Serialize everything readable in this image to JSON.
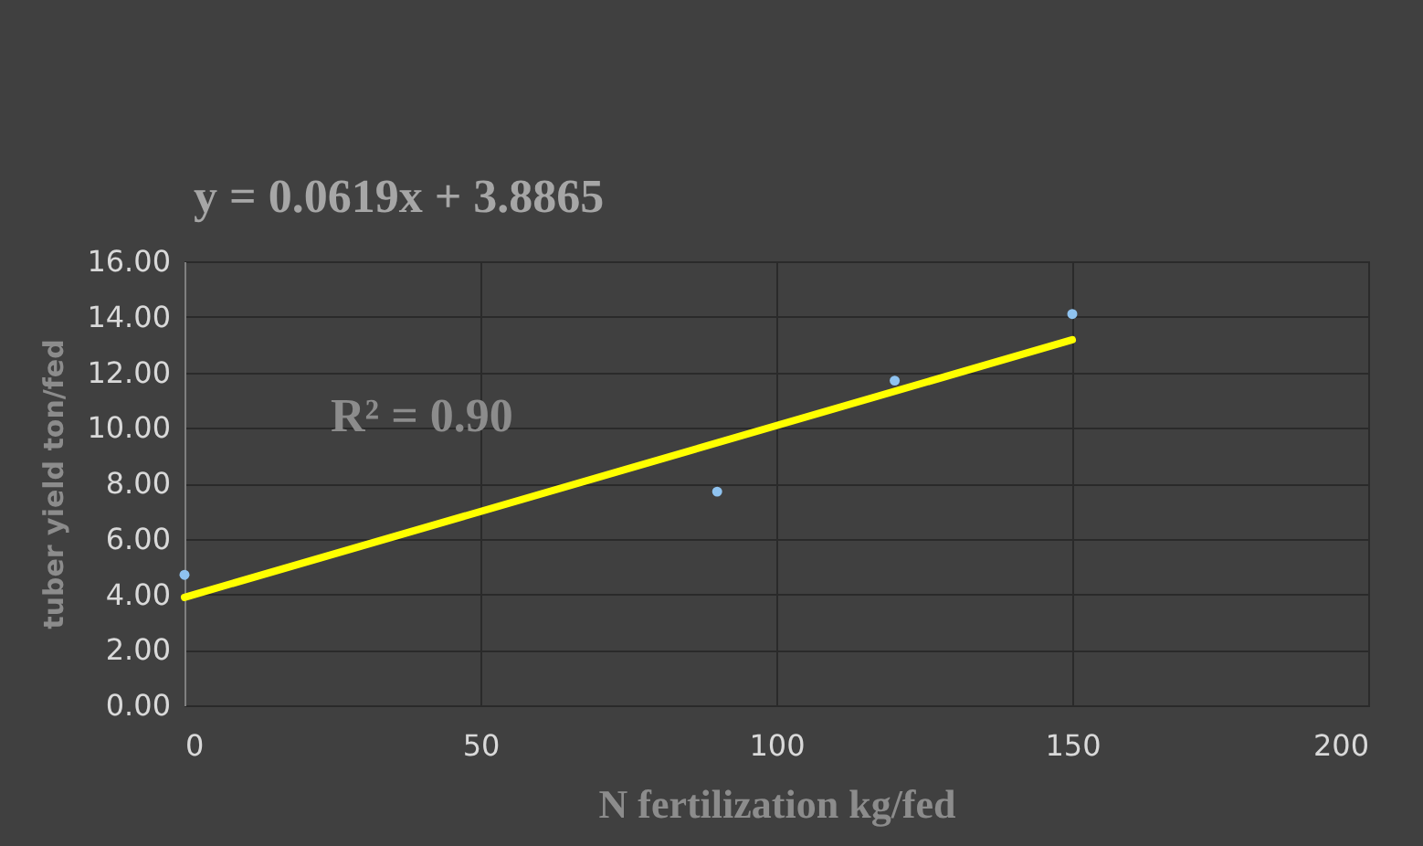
{
  "chart_data": {
    "type": "scatter",
    "xlabel": "N fertilization  kg/fed",
    "ylabel": "tuber yield ton/fed",
    "annotations": [
      "y = 0.0619x + 3.8865",
      "R² = 0.90"
    ],
    "series": [
      {
        "color": "#8fc3f0",
        "x": [
          0,
          90,
          120,
          150
        ],
        "values": [
          4.7,
          7.7,
          11.7,
          14.1
        ],
        "marker": "circle"
      },
      {
        "type": "line",
        "color": "#ffff00",
        "x": [
          0,
          150
        ],
        "values": [
          3.89,
          13.17
        ],
        "line_style": "solid"
      }
    ],
    "xlim": [
      0,
      200
    ],
    "xticks": [
      0,
      50,
      100,
      150,
      200
    ],
    "ylim": [
      0,
      16
    ],
    "yticks": [
      {
        "value": 0,
        "label": "0.00"
      },
      {
        "value": 2,
        "label": "2.00"
      },
      {
        "value": 4,
        "label": "4.00"
      },
      {
        "value": 6,
        "label": "6.00"
      },
      {
        "value": 8,
        "label": "8.00"
      },
      {
        "value": 10,
        "label": "10.00"
      },
      {
        "value": 12,
        "label": "12.00"
      },
      {
        "value": 14,
        "label": "14.00"
      },
      {
        "value": 16,
        "label": "16.00"
      }
    ],
    "grid": true,
    "legend": false
  }
}
